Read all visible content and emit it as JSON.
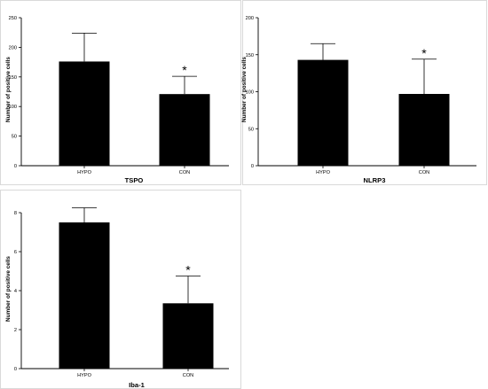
{
  "chart_data": [
    {
      "type": "bar",
      "categories": [
        "HYPO",
        "CON"
      ],
      "values": [
        176,
        121
      ],
      "errors": [
        48,
        30
      ],
      "annotations": [
        "",
        "*"
      ],
      "xlabel": "TSPO",
      "ylabel": "Number of positive cells",
      "ylim": [
        0,
        250
      ],
      "yticks": [
        0,
        50,
        100,
        150,
        200,
        250
      ],
      "grid": false
    },
    {
      "type": "bar",
      "categories": [
        "HYPO",
        "CON"
      ],
      "values": [
        143,
        97
      ],
      "errors": [
        22,
        47
      ],
      "annotations": [
        "",
        "*"
      ],
      "xlabel": "NLRP3",
      "ylabel": "Number of positive cells",
      "ylim": [
        0,
        200
      ],
      "yticks": [
        0,
        50,
        100,
        150,
        200
      ],
      "grid": false
    },
    {
      "type": "bar",
      "categories": [
        "HYPO",
        "CON"
      ],
      "values": [
        7.5,
        3.35
      ],
      "errors": [
        0.75,
        1.4
      ],
      "annotations": [
        "",
        "*"
      ],
      "xlabel": "Iba-1",
      "ylabel": "Number of positive cells",
      "ylim": [
        0,
        8
      ],
      "yticks": [
        0,
        2,
        4,
        6,
        8
      ],
      "grid": false
    }
  ]
}
